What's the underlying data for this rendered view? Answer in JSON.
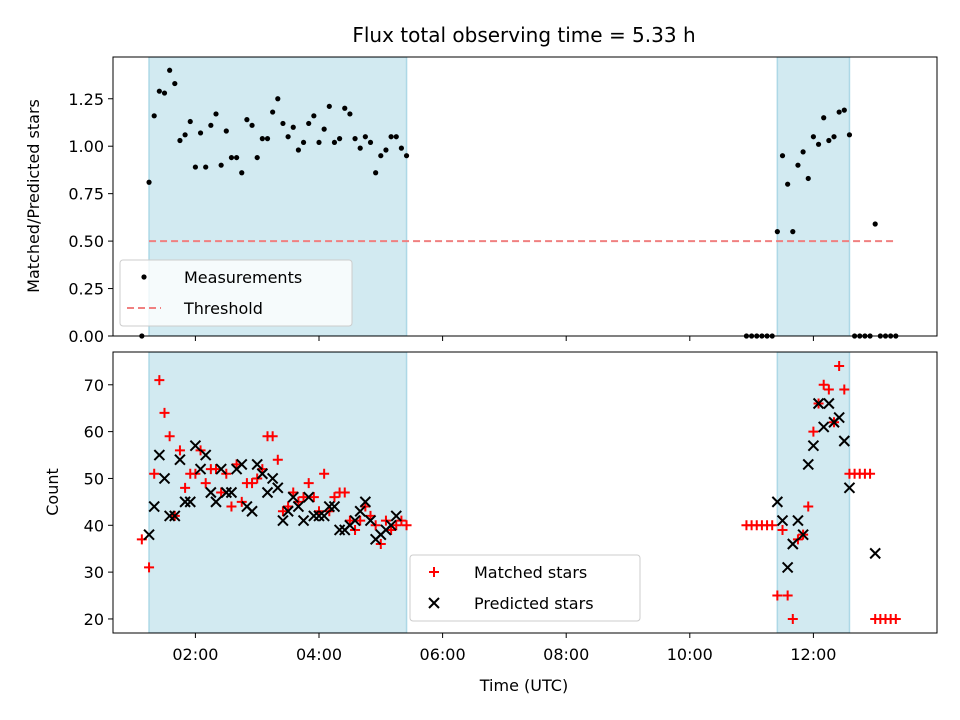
{
  "chart_data": [
    {
      "type": "scatter",
      "title": "Flux total observing time = 5.33 h",
      "xlabel": "",
      "ylabel": "Matched/Predicted stars",
      "xlim": [
        "00:40",
        "14:00"
      ],
      "ylim": [
        0,
        1.47
      ],
      "y_ticks": [
        "0.00",
        "0.25",
        "0.50",
        "0.75",
        "1.00",
        "1.25"
      ],
      "x_ticks": [
        "02:00",
        "04:00",
        "06:00",
        "08:00",
        "10:00",
        "12:00"
      ],
      "grid": false,
      "legend_placement": "lower-left",
      "shaded_intervals": [
        [
          "01:15",
          "05:25"
        ],
        [
          "11:25",
          "12:35"
        ]
      ],
      "shade_color": "#add8e6",
      "series": [
        {
          "name": "Measurements",
          "marker": "dot",
          "color": "#000000",
          "points": [
            [
              "01:08",
              0.0
            ],
            [
              "01:15",
              0.81
            ],
            [
              "01:20",
              1.16
            ],
            [
              "01:25",
              1.29
            ],
            [
              "01:30",
              1.28
            ],
            [
              "01:35",
              1.4
            ],
            [
              "01:40",
              1.33
            ],
            [
              "01:45",
              1.03
            ],
            [
              "01:50",
              1.06
            ],
            [
              "01:55",
              1.13
            ],
            [
              "02:00",
              0.89
            ],
            [
              "02:05",
              1.07
            ],
            [
              "02:10",
              0.89
            ],
            [
              "02:15",
              1.11
            ],
            [
              "02:20",
              1.17
            ],
            [
              "02:25",
              0.9
            ],
            [
              "02:30",
              1.08
            ],
            [
              "02:35",
              0.94
            ],
            [
              "02:40",
              0.94
            ],
            [
              "02:45",
              0.86
            ],
            [
              "02:50",
              1.14
            ],
            [
              "02:55",
              1.11
            ],
            [
              "03:00",
              0.94
            ],
            [
              "03:05",
              1.04
            ],
            [
              "03:10",
              1.04
            ],
            [
              "03:15",
              1.18
            ],
            [
              "03:20",
              1.25
            ],
            [
              "03:25",
              1.12
            ],
            [
              "03:30",
              1.05
            ],
            [
              "03:35",
              1.1
            ],
            [
              "03:40",
              0.98
            ],
            [
              "03:45",
              1.02
            ],
            [
              "03:50",
              1.12
            ],
            [
              "03:55",
              1.16
            ],
            [
              "04:00",
              1.02
            ],
            [
              "04:05",
              1.09
            ],
            [
              "04:10",
              1.21
            ],
            [
              "04:15",
              1.02
            ],
            [
              "04:20",
              1.04
            ],
            [
              "04:25",
              1.2
            ],
            [
              "04:30",
              1.17
            ],
            [
              "04:35",
              1.04
            ],
            [
              "04:40",
              0.99
            ],
            [
              "04:45",
              1.05
            ],
            [
              "04:50",
              1.02
            ],
            [
              "04:55",
              0.86
            ],
            [
              "05:00",
              0.95
            ],
            [
              "05:05",
              0.98
            ],
            [
              "05:10",
              1.05
            ],
            [
              "05:15",
              1.05
            ],
            [
              "05:20",
              0.99
            ],
            [
              "05:25",
              0.95
            ],
            [
              "10:55",
              0.0
            ],
            [
              "11:00",
              0.0
            ],
            [
              "11:05",
              0.0
            ],
            [
              "11:10",
              0.0
            ],
            [
              "11:15",
              0.0
            ],
            [
              "11:20",
              0.0
            ],
            [
              "11:25",
              0.55
            ],
            [
              "11:30",
              0.95
            ],
            [
              "11:35",
              0.8
            ],
            [
              "11:40",
              0.55
            ],
            [
              "11:45",
              0.9
            ],
            [
              "11:50",
              0.97
            ],
            [
              "11:55",
              0.83
            ],
            [
              "12:00",
              1.05
            ],
            [
              "12:05",
              1.01
            ],
            [
              "12:10",
              1.15
            ],
            [
              "12:15",
              1.03
            ],
            [
              "12:20",
              1.05
            ],
            [
              "12:25",
              1.18
            ],
            [
              "12:30",
              1.19
            ],
            [
              "12:35",
              1.06
            ],
            [
              "12:40",
              0.0
            ],
            [
              "12:45",
              0.0
            ],
            [
              "12:50",
              0.0
            ],
            [
              "12:55",
              0.0
            ],
            [
              "13:00",
              0.59
            ],
            [
              "13:05",
              0.0
            ],
            [
              "13:10",
              0.0
            ],
            [
              "13:15",
              0.0
            ],
            [
              "13:20",
              0.0
            ]
          ]
        },
        {
          "name": "Threshold",
          "marker": "dashed-line",
          "color": "#f08080",
          "points": [
            [
              "01:15",
              0.5
            ],
            [
              "13:20",
              0.5
            ]
          ]
        }
      ]
    },
    {
      "type": "scatter",
      "title": "",
      "xlabel": "Time (UTC)",
      "ylabel": "Count",
      "xlim": [
        "00:40",
        "14:00"
      ],
      "ylim": [
        17,
        77
      ],
      "y_ticks": [
        "20",
        "30",
        "40",
        "50",
        "60",
        "70"
      ],
      "x_ticks": [
        "02:00",
        "04:00",
        "06:00",
        "08:00",
        "10:00",
        "12:00"
      ],
      "grid": false,
      "legend_placement": "lower-center",
      "shaded_intervals": [
        [
          "01:15",
          "05:25"
        ],
        [
          "11:25",
          "12:35"
        ]
      ],
      "shade_color": "#add8e6",
      "series": [
        {
          "name": "Matched stars",
          "marker": "plus",
          "color": "#ff0000",
          "points": [
            [
              "01:08",
              37
            ],
            [
              "01:15",
              31
            ],
            [
              "01:20",
              51
            ],
            [
              "01:25",
              71
            ],
            [
              "01:30",
              64
            ],
            [
              "01:35",
              59
            ],
            [
              "01:40",
              42
            ],
            [
              "01:45",
              56
            ],
            [
              "01:50",
              48
            ],
            [
              "01:55",
              51
            ],
            [
              "02:00",
              51
            ],
            [
              "02:05",
              56
            ],
            [
              "02:10",
              49
            ],
            [
              "02:15",
              52
            ],
            [
              "02:20",
              52
            ],
            [
              "02:25",
              47
            ],
            [
              "02:30",
              51
            ],
            [
              "02:35",
              44
            ],
            [
              "02:40",
              53
            ],
            [
              "02:45",
              45
            ],
            [
              "02:50",
              49
            ],
            [
              "02:55",
              49
            ],
            [
              "03:00",
              50
            ],
            [
              "03:05",
              52
            ],
            [
              "03:10",
              59
            ],
            [
              "03:15",
              59
            ],
            [
              "03:20",
              54
            ],
            [
              "03:25",
              43
            ],
            [
              "03:30",
              44
            ],
            [
              "03:35",
              47
            ],
            [
              "03:40",
              45
            ],
            [
              "03:45",
              46
            ],
            [
              "03:50",
              49
            ],
            [
              "03:55",
              46
            ],
            [
              "04:00",
              43
            ],
            [
              "04:05",
              51
            ],
            [
              "04:10",
              43
            ],
            [
              "04:15",
              46
            ],
            [
              "04:20",
              47
            ],
            [
              "04:25",
              47
            ],
            [
              "04:30",
              41
            ],
            [
              "04:35",
              39
            ],
            [
              "04:40",
              41
            ],
            [
              "04:45",
              44
            ],
            [
              "04:50",
              42
            ],
            [
              "04:55",
              40
            ],
            [
              "05:00",
              36
            ],
            [
              "05:05",
              41
            ],
            [
              "05:10",
              39
            ],
            [
              "05:15",
              40
            ],
            [
              "05:20",
              41
            ],
            [
              "05:25",
              40
            ],
            [
              "10:55",
              40
            ],
            [
              "11:00",
              40
            ],
            [
              "11:05",
              40
            ],
            [
              "11:10",
              40
            ],
            [
              "11:15",
              40
            ],
            [
              "11:20",
              40
            ],
            [
              "11:25",
              25
            ],
            [
              "11:30",
              39
            ],
            [
              "11:35",
              25
            ],
            [
              "11:40",
              20
            ],
            [
              "11:45",
              37
            ],
            [
              "11:50",
              38
            ],
            [
              "11:55",
              44
            ],
            [
              "12:00",
              60
            ],
            [
              "12:05",
              66
            ],
            [
              "12:10",
              70
            ],
            [
              "12:15",
              69
            ],
            [
              "12:20",
              62
            ],
            [
              "12:25",
              74
            ],
            [
              "12:30",
              69
            ],
            [
              "12:35",
              51
            ],
            [
              "12:40",
              51
            ],
            [
              "12:45",
              51
            ],
            [
              "12:50",
              51
            ],
            [
              "12:55",
              51
            ],
            [
              "13:00",
              20
            ],
            [
              "13:05",
              20
            ],
            [
              "13:10",
              20
            ],
            [
              "13:15",
              20
            ],
            [
              "13:20",
              20
            ]
          ]
        },
        {
          "name": "Predicted stars",
          "marker": "x",
          "color": "#000000",
          "points": [
            [
              "01:15",
              38
            ],
            [
              "01:20",
              44
            ],
            [
              "01:25",
              55
            ],
            [
              "01:30",
              50
            ],
            [
              "01:35",
              42
            ],
            [
              "01:40",
              42
            ],
            [
              "01:45",
              54
            ],
            [
              "01:50",
              45
            ],
            [
              "01:55",
              45
            ],
            [
              "02:00",
              57
            ],
            [
              "02:05",
              52
            ],
            [
              "02:10",
              55
            ],
            [
              "02:15",
              47
            ],
            [
              "02:20",
              45
            ],
            [
              "02:25",
              52
            ],
            [
              "02:30",
              47
            ],
            [
              "02:35",
              47
            ],
            [
              "02:40",
              52
            ],
            [
              "02:45",
              53
            ],
            [
              "02:50",
              44
            ],
            [
              "02:55",
              43
            ],
            [
              "03:00",
              53
            ],
            [
              "03:05",
              51
            ],
            [
              "03:10",
              47
            ],
            [
              "03:15",
              50
            ],
            [
              "03:20",
              48
            ],
            [
              "03:25",
              41
            ],
            [
              "03:30",
              43
            ],
            [
              "03:35",
              46
            ],
            [
              "03:40",
              44
            ],
            [
              "03:45",
              41
            ],
            [
              "03:50",
              46
            ],
            [
              "03:55",
              42
            ],
            [
              "04:00",
              42
            ],
            [
              "04:05",
              42
            ],
            [
              "04:10",
              44
            ],
            [
              "04:15",
              44
            ],
            [
              "04:20",
              39
            ],
            [
              "04:25",
              39
            ],
            [
              "04:30",
              40
            ],
            [
              "04:35",
              41
            ],
            [
              "04:40",
              43
            ],
            [
              "04:45",
              45
            ],
            [
              "04:50",
              41
            ],
            [
              "04:55",
              37
            ],
            [
              "05:00",
              38
            ],
            [
              "05:05",
              39
            ],
            [
              "05:10",
              40
            ],
            [
              "05:15",
              42
            ],
            [
              "11:25",
              45
            ],
            [
              "11:30",
              41
            ],
            [
              "11:35",
              31
            ],
            [
              "11:40",
              36
            ],
            [
              "11:45",
              41
            ],
            [
              "11:50",
              38
            ],
            [
              "11:55",
              53
            ],
            [
              "12:00",
              57
            ],
            [
              "12:05",
              66
            ],
            [
              "12:10",
              61
            ],
            [
              "12:15",
              66
            ],
            [
              "12:20",
              62
            ],
            [
              "12:25",
              63
            ],
            [
              "12:30",
              58
            ],
            [
              "12:35",
              48
            ],
            [
              "13:00",
              34
            ]
          ]
        }
      ]
    }
  ]
}
